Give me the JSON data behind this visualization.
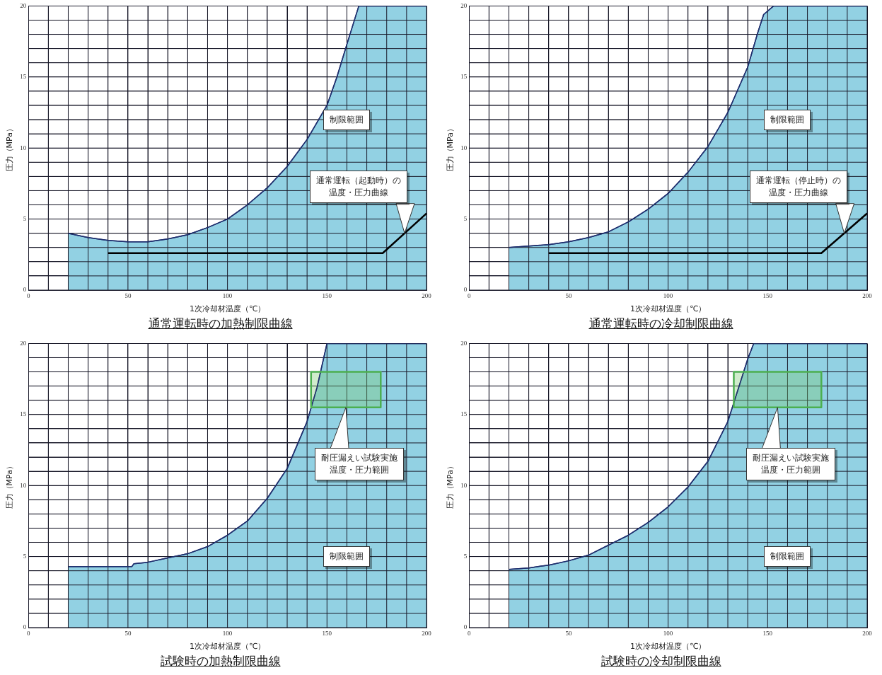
{
  "chart_data": [
    {
      "type": "area",
      "title": "通常運転時の加熱制限曲線",
      "xlabel": "1次冷却材温度（℃）",
      "ylabel": "圧力（MPa）",
      "xlim": [
        0,
        200
      ],
      "ylim": [
        0,
        20
      ],
      "grid": true,
      "legend": false,
      "xticks": [
        0,
        {
          "value": 10,
          "label": null
        },
        {
          "value": 20,
          "label": null
        },
        {
          "value": 30,
          "label": null
        },
        {
          "value": 40,
          "label": null
        },
        50,
        {
          "value": 60,
          "label": null
        },
        {
          "value": 70,
          "label": null
        },
        {
          "value": 80,
          "label": null
        },
        {
          "value": 90,
          "label": null
        },
        100,
        {
          "value": 110,
          "label": null
        },
        {
          "value": 120,
          "label": null
        },
        {
          "value": 130,
          "label": null
        },
        {
          "value": 140,
          "label": null
        },
        150,
        {
          "value": 160,
          "label": null
        },
        {
          "value": 170,
          "label": null
        },
        {
          "value": 180,
          "label": null
        },
        {
          "value": 190,
          "label": null
        },
        200
      ],
      "yticks": [
        0,
        {
          "value": 1,
          "label": null
        },
        {
          "value": 2,
          "label": null
        },
        {
          "value": 3,
          "label": null
        },
        {
          "value": 4,
          "label": null
        },
        5,
        {
          "value": 6,
          "label": null
        },
        {
          "value": 7,
          "label": null
        },
        {
          "value": 8,
          "label": null
        },
        {
          "value": 9,
          "label": null
        },
        10,
        {
          "value": 11,
          "label": null
        },
        {
          "value": 12,
          "label": null
        },
        {
          "value": 13,
          "label": null
        },
        {
          "value": 14,
          "label": null
        },
        15,
        {
          "value": 16,
          "label": null
        },
        {
          "value": 17,
          "label": null
        },
        {
          "value": 18,
          "label": null
        },
        {
          "value": 19,
          "label": null
        },
        20
      ],
      "series": [
        {
          "color": "#92d1e3",
          "x": [
            20,
            30,
            40,
            50,
            60,
            70,
            80,
            90,
            100,
            110,
            120,
            130,
            140,
            150,
            155,
            160,
            166,
            200
          ],
          "values": [
            4.0,
            3.7,
            3.5,
            3.4,
            3.4,
            3.6,
            3.9,
            4.4,
            5.0,
            6.0,
            7.2,
            8.7,
            10.6,
            13.0,
            15.0,
            17.3,
            20,
            20
          ]
        },
        {
          "type": "line",
          "color": "#000000",
          "x": [
            40,
            178,
            200
          ],
          "values": [
            2.6,
            2.6,
            5.4
          ]
        }
      ],
      "annotations": [
        "制限範囲",
        "通常運転（起動時）の温度・圧力曲線"
      ]
    },
    {
      "type": "area",
      "title": "通常運転時の冷却制限曲線",
      "xlabel": "1次冷却材温度（℃）",
      "ylabel": "圧力（MPa）",
      "xlim": [
        0,
        200
      ],
      "ylim": [
        0,
        20
      ],
      "grid": true,
      "legend": false,
      "xticks": [
        0,
        {
          "value": 10,
          "label": null
        },
        {
          "value": 20,
          "label": null
        },
        {
          "value": 30,
          "label": null
        },
        {
          "value": 40,
          "label": null
        },
        50,
        {
          "value": 60,
          "label": null
        },
        {
          "value": 70,
          "label": null
        },
        {
          "value": 80,
          "label": null
        },
        {
          "value": 90,
          "label": null
        },
        100,
        {
          "value": 110,
          "label": null
        },
        {
          "value": 120,
          "label": null
        },
        {
          "value": 130,
          "label": null
        },
        {
          "value": 140,
          "label": null
        },
        150,
        {
          "value": 160,
          "label": null
        },
        {
          "value": 170,
          "label": null
        },
        {
          "value": 180,
          "label": null
        },
        {
          "value": 190,
          "label": null
        },
        200
      ],
      "yticks": [
        0,
        {
          "value": 1,
          "label": null
        },
        {
          "value": 2,
          "label": null
        },
        {
          "value": 3,
          "label": null
        },
        {
          "value": 4,
          "label": null
        },
        5,
        {
          "value": 6,
          "label": null
        },
        {
          "value": 7,
          "label": null
        },
        {
          "value": 8,
          "label": null
        },
        {
          "value": 9,
          "label": null
        },
        10,
        {
          "value": 11,
          "label": null
        },
        {
          "value": 12,
          "label": null
        },
        {
          "value": 13,
          "label": null
        },
        {
          "value": 14,
          "label": null
        },
        15,
        {
          "value": 16,
          "label": null
        },
        {
          "value": 17,
          "label": null
        },
        {
          "value": 18,
          "label": null
        },
        {
          "value": 19,
          "label": null
        },
        20
      ],
      "series": [
        {
          "color": "#92d1e3",
          "x": [
            20,
            30,
            40,
            50,
            60,
            70,
            80,
            90,
            100,
            110,
            120,
            130,
            140,
            145,
            148,
            153,
            200
          ],
          "values": [
            3.0,
            3.1,
            3.2,
            3.4,
            3.7,
            4.1,
            4.8,
            5.7,
            6.8,
            8.3,
            10.1,
            12.5,
            15.7,
            18.1,
            19.4,
            20,
            20
          ]
        },
        {
          "type": "line",
          "color": "#000000",
          "x": [
            40,
            177,
            200
          ],
          "values": [
            2.6,
            2.6,
            5.4
          ]
        }
      ],
      "annotations": [
        "制限範囲",
        "通常運転（停止時）の温度・圧力曲線"
      ]
    },
    {
      "type": "area",
      "title": "試験時の加熱制限曲線",
      "xlabel": "1次冷却材温度（℃）",
      "ylabel": "圧力（MPa）",
      "xlim": [
        0,
        200
      ],
      "ylim": [
        0,
        20
      ],
      "grid": true,
      "legend": false,
      "xticks": [
        0,
        {
          "value": 10,
          "label": null
        },
        {
          "value": 20,
          "label": null
        },
        {
          "value": 30,
          "label": null
        },
        {
          "value": 40,
          "label": null
        },
        50,
        {
          "value": 60,
          "label": null
        },
        {
          "value": 70,
          "label": null
        },
        {
          "value": 80,
          "label": null
        },
        {
          "value": 90,
          "label": null
        },
        100,
        {
          "value": 110,
          "label": null
        },
        {
          "value": 120,
          "label": null
        },
        {
          "value": 130,
          "label": null
        },
        {
          "value": 140,
          "label": null
        },
        150,
        {
          "value": 160,
          "label": null
        },
        {
          "value": 170,
          "label": null
        },
        {
          "value": 180,
          "label": null
        },
        {
          "value": 190,
          "label": null
        },
        200
      ],
      "yticks": [
        0,
        {
          "value": 1,
          "label": null
        },
        {
          "value": 2,
          "label": null
        },
        {
          "value": 3,
          "label": null
        },
        {
          "value": 4,
          "label": null
        },
        5,
        {
          "value": 6,
          "label": null
        },
        {
          "value": 7,
          "label": null
        },
        {
          "value": 8,
          "label": null
        },
        {
          "value": 9,
          "label": null
        },
        10,
        {
          "value": 11,
          "label": null
        },
        {
          "value": 12,
          "label": null
        },
        {
          "value": 13,
          "label": null
        },
        {
          "value": 14,
          "label": null
        },
        15,
        {
          "value": 16,
          "label": null
        },
        {
          "value": 17,
          "label": null
        },
        {
          "value": 18,
          "label": null
        },
        {
          "value": 19,
          "label": null
        },
        20
      ],
      "series": [
        {
          "color": "#92d1e3",
          "x": [
            20,
            52,
            53,
            60,
            70,
            80,
            90,
            100,
            110,
            120,
            130,
            140,
            145,
            150,
            200
          ],
          "values": [
            4.3,
            4.3,
            4.5,
            4.6,
            4.9,
            5.2,
            5.7,
            6.5,
            7.5,
            9.1,
            11.2,
            14.5,
            16.9,
            20,
            20
          ]
        },
        {
          "type": "area",
          "color": "#4caf50",
          "x": [
            142,
            177,
            177,
            142,
            142
          ],
          "values": [
            15.5,
            15.5,
            18,
            18,
            15.5
          ]
        }
      ],
      "annotations": [
        "制限範囲",
        "耐圧漏えい試験実施温度・圧力範囲"
      ]
    },
    {
      "type": "area",
      "title": "試験時の冷却制限曲線",
      "xlabel": "1次冷却材温度（℃）",
      "ylabel": "圧力（MPa）",
      "xlim": [
        0,
        200
      ],
      "ylim": [
        0,
        20
      ],
      "grid": true,
      "legend": false,
      "xticks": [
        0,
        {
          "value": 10,
          "label": null
        },
        {
          "value": 20,
          "label": null
        },
        {
          "value": 30,
          "label": null
        },
        {
          "value": 40,
          "label": null
        },
        50,
        {
          "value": 60,
          "label": null
        },
        {
          "value": 70,
          "label": null
        },
        {
          "value": 80,
          "label": null
        },
        {
          "value": 90,
          "label": null
        },
        100,
        {
          "value": 110,
          "label": null
        },
        {
          "value": 120,
          "label": null
        },
        {
          "value": 130,
          "label": null
        },
        {
          "value": 140,
          "label": null
        },
        150,
        {
          "value": 160,
          "label": null
        },
        {
          "value": 170,
          "label": null
        },
        {
          "value": 180,
          "label": null
        },
        {
          "value": 190,
          "label": null
        },
        200
      ],
      "yticks": [
        0,
        {
          "value": 1,
          "label": null
        },
        {
          "value": 2,
          "label": null
        },
        {
          "value": 3,
          "label": null
        },
        {
          "value": 4,
          "label": null
        },
        5,
        {
          "value": 6,
          "label": null
        },
        {
          "value": 7,
          "label": null
        },
        {
          "value": 8,
          "label": null
        },
        {
          "value": 9,
          "label": null
        },
        10,
        {
          "value": 11,
          "label": null
        },
        {
          "value": 12,
          "label": null
        },
        {
          "value": 13,
          "label": null
        },
        {
          "value": 14,
          "label": null
        },
        15,
        {
          "value": 16,
          "label": null
        },
        {
          "value": 17,
          "label": null
        },
        {
          "value": 18,
          "label": null
        },
        {
          "value": 19,
          "label": null
        },
        20
      ],
      "series": [
        {
          "color": "#92d1e3",
          "x": [
            20,
            30,
            40,
            50,
            60,
            70,
            80,
            90,
            100,
            110,
            120,
            130,
            140,
            143,
            200
          ],
          "values": [
            4.1,
            4.2,
            4.4,
            4.7,
            5.1,
            5.8,
            6.5,
            7.4,
            8.5,
            9.9,
            11.7,
            14.5,
            18.9,
            20,
            20
          ]
        },
        {
          "type": "area",
          "color": "#4caf50",
          "x": [
            133,
            177,
            177,
            133,
            133
          ],
          "values": [
            15.5,
            15.5,
            18,
            18,
            15.5
          ]
        }
      ],
      "annotations": [
        "制限範囲",
        "耐圧漏えい試験実施温度・圧力範囲"
      ]
    }
  ]
}
